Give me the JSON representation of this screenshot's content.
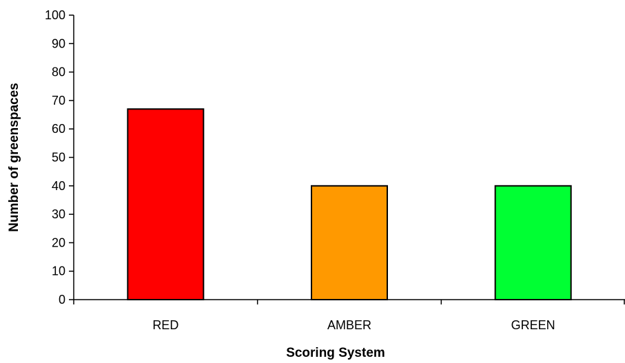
{
  "chart_data": {
    "type": "bar",
    "title": "",
    "xlabel": "Scoring System",
    "ylabel": "Number of greenspaces",
    "categories": [
      "RED",
      "AMBER",
      "GREEN"
    ],
    "values": [
      67,
      40,
      40
    ],
    "bar_colors": [
      "#ff0000",
      "#ff9900",
      "#00ff33"
    ],
    "ylim": [
      0,
      100
    ],
    "yticks": [
      0,
      10,
      20,
      30,
      40,
      50,
      60,
      70,
      80,
      90,
      100
    ],
    "grid": false,
    "legend": "none"
  }
}
